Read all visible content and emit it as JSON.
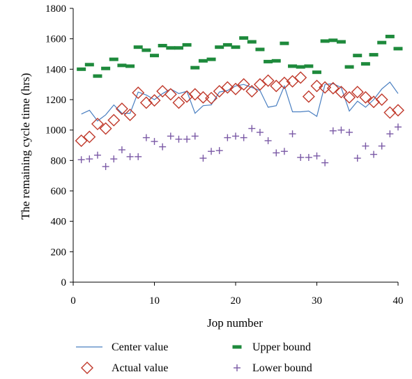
{
  "chart_data": {
    "type": "scatter",
    "title": "",
    "xlabel": "Jop number",
    "ylabel": "The remaining cycle time (hrs)",
    "xlim": [
      0,
      40
    ],
    "ylim": [
      0,
      1800
    ],
    "x_ticks": [
      0,
      10,
      20,
      30,
      40
    ],
    "y_ticks": [
      0,
      200,
      400,
      600,
      800,
      1000,
      1200,
      1400,
      1600,
      1800
    ],
    "grid": false,
    "legend_position": "bottom",
    "x": [
      1,
      2,
      3,
      4,
      5,
      6,
      7,
      8,
      9,
      10,
      11,
      12,
      13,
      14,
      15,
      16,
      17,
      18,
      19,
      20,
      21,
      22,
      23,
      24,
      25,
      26,
      27,
      28,
      29,
      30,
      31,
      32,
      33,
      34,
      35,
      36,
      37,
      38,
      39,
      40
    ],
    "series": [
      {
        "name": "Center value",
        "style": "line",
        "color": "#4a7fc1",
        "values": [
          1105,
          1130,
          1060,
          1100,
          1165,
          1110,
          1110,
          1250,
          1230,
          1200,
          1240,
          1270,
          1240,
          1255,
          1110,
          1160,
          1165,
          1250,
          1260,
          1290,
          1300,
          1280,
          1260,
          1150,
          1160,
          1290,
          1120,
          1120,
          1125,
          1090,
          1300,
          1305,
          1280,
          1125,
          1190,
          1150,
          1200,
          1270,
          1315,
          1240
        ]
      },
      {
        "name": "Actual value",
        "style": "diamond",
        "color": "#c0392b",
        "values": [
          930,
          955,
          1040,
          1010,
          1065,
          1140,
          1100,
          1245,
          1180,
          1195,
          1255,
          1235,
          1180,
          1220,
          1235,
          1215,
          1210,
          1255,
          1280,
          1270,
          1300,
          1255,
          1300,
          1325,
          1290,
          1310,
          1320,
          1345,
          1220,
          1290,
          1280,
          1275,
          1250,
          1215,
          1250,
          1215,
          1185,
          1200,
          1115,
          1130
        ]
      },
      {
        "name": "Upper bound",
        "style": "dash",
        "color": "#1e8a3c",
        "values": [
          1400,
          1430,
          1355,
          1405,
          1465,
          1425,
          1420,
          1545,
          1525,
          1490,
          1555,
          1540,
          1540,
          1560,
          1410,
          1455,
          1465,
          1545,
          1560,
          1545,
          1605,
          1580,
          1530,
          1450,
          1455,
          1570,
          1420,
          1415,
          1420,
          1380,
          1585,
          1590,
          1580,
          1415,
          1490,
          1435,
          1495,
          1575,
          1615,
          1535
        ]
      },
      {
        "name": "Lower bound",
        "style": "plus",
        "color": "#7b5aa6",
        "values": [
          805,
          810,
          835,
          760,
          810,
          870,
          825,
          825,
          950,
          925,
          890,
          960,
          940,
          940,
          960,
          815,
          860,
          865,
          950,
          960,
          950,
          1010,
          985,
          930,
          850,
          860,
          975,
          820,
          820,
          830,
          785,
          995,
          1000,
          985,
          815,
          895,
          840,
          895,
          975,
          1020
        ]
      }
    ]
  }
}
